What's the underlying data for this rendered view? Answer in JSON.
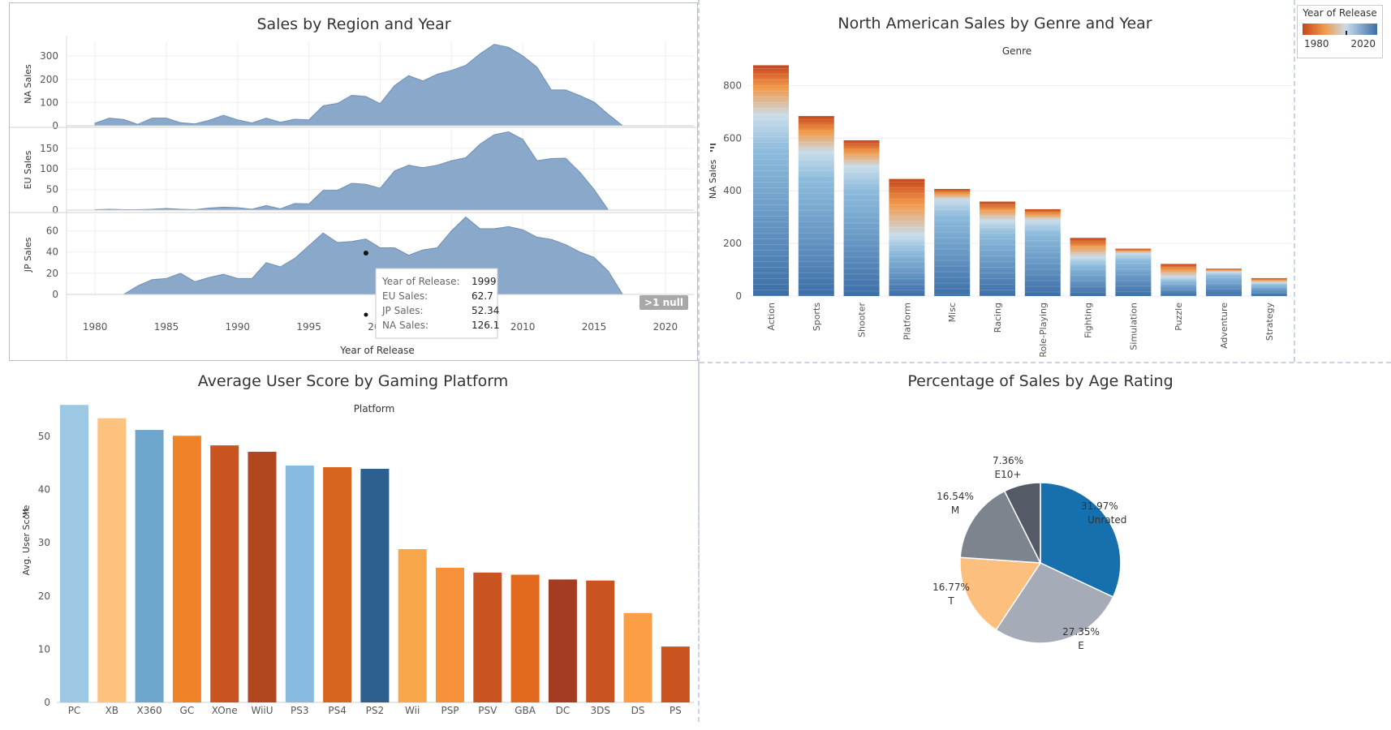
{
  "colors": {
    "area_fill": "#8aa8c9",
    "area_line": "#6f8fb6",
    "tooltip_border": "#c8c8c8",
    "null_badge": "#a8a8a8",
    "gradient_old": "#c6461b",
    "gradient_mid": "#f29a4a",
    "gradient_pale": "#c9dcea",
    "gradient_new": "#3d6fa8"
  },
  "legend": {
    "title": "Year of Release",
    "min_label": "1980",
    "max_label": "2020"
  },
  "region_chart": {
    "title": "Sales by Region and Year",
    "xlabel": "Year of Release",
    "null_badge": ">1 null",
    "tooltip": {
      "rows": [
        {
          "label": "Year of Release:",
          "value": "1999"
        },
        {
          "label": "EU Sales:",
          "value": "62.7"
        },
        {
          "label": "JP Sales:",
          "value": "52.34"
        },
        {
          "label": "NA Sales:",
          "value": "126.1"
        }
      ]
    }
  },
  "genre_chart": {
    "title": "North American Sales by Genre and Year",
    "header": "Genre",
    "ylabel": "NA Sales"
  },
  "platform_chart": {
    "title": "Average User Score by Gaming Platform",
    "header": "Platform",
    "ylabel": "Avg. User Score"
  },
  "age_chart": {
    "title": "Percentage of Sales by Age Rating"
  },
  "chart_data": [
    {
      "type": "area",
      "title": "Sales by Region and Year",
      "xlabel": "Year of Release",
      "xlim": [
        1978,
        2022
      ],
      "xticks": [
        1980,
        1985,
        1990,
        1995,
        2000,
        2005,
        2010,
        2015,
        2020
      ],
      "x": [
        1980,
        1981,
        1982,
        1983,
        1984,
        1985,
        1986,
        1987,
        1988,
        1989,
        1990,
        1991,
        1992,
        1993,
        1994,
        1995,
        1996,
        1997,
        1998,
        1999,
        2000,
        2001,
        2002,
        2003,
        2004,
        2005,
        2006,
        2007,
        2008,
        2009,
        2010,
        2011,
        2012,
        2013,
        2014,
        2015,
        2016,
        2017,
        2018,
        2019,
        2020
      ],
      "series": [
        {
          "name": "NA Sales",
          "ylim": [
            0,
            360
          ],
          "yticks": [
            0,
            100,
            200,
            300
          ],
          "values": [
            11,
            33,
            27,
            6,
            33,
            33,
            13,
            8,
            23,
            45,
            25,
            12,
            33,
            15,
            28,
            25,
            86,
            96,
            131,
            126,
            95,
            173,
            216,
            193,
            222,
            238,
            260,
            310,
            351,
            338,
            301,
            252,
            154,
            154,
            130,
            102,
            49,
            0,
            0,
            0,
            0
          ]
        },
        {
          "name": "EU Sales",
          "ylim": [
            0,
            195
          ],
          "yticks": [
            0,
            50,
            100,
            150
          ],
          "values": [
            1,
            2,
            1,
            1,
            2,
            4,
            2,
            1,
            5,
            7,
            6,
            2,
            11,
            3,
            16,
            15,
            48,
            48,
            65,
            62.7,
            53,
            95,
            109,
            103,
            109,
            120,
            127,
            160,
            183,
            190,
            172,
            120,
            125,
            126,
            92,
            50,
            0,
            0,
            0,
            0,
            0
          ]
        },
        {
          "name": "JP Sales",
          "ylim": [
            0,
            75
          ],
          "yticks": [
            0,
            20,
            40,
            60
          ],
          "values": [
            0,
            0,
            0,
            8,
            14,
            15,
            20,
            12,
            16,
            19,
            15,
            15,
            30,
            26,
            34,
            46,
            58,
            49,
            50,
            52.34,
            44,
            44,
            37,
            42,
            44,
            60,
            73,
            62,
            62,
            64,
            61,
            54,
            52,
            47,
            40,
            35,
            22,
            0,
            0,
            0,
            0
          ]
        }
      ]
    },
    {
      "type": "bar",
      "title": "North American Sales by Genre and Year",
      "xlabel": "Genre",
      "ylabel": "NA Sales",
      "ylim": [
        0,
        900
      ],
      "yticks": [
        0,
        200,
        400,
        600,
        800
      ],
      "categories": [
        "Action",
        "Sports",
        "Shooter",
        "Platform",
        "Misc",
        "Racing",
        "Role-Playing",
        "Fighting",
        "Simulation",
        "Puzzle",
        "Adventure",
        "Strategy"
      ],
      "values": [
        877,
        684,
        592,
        445,
        407,
        359,
        330,
        221,
        180,
        122,
        104,
        68
      ],
      "old_share": [
        0.22,
        0.2,
        0.17,
        0.48,
        0.1,
        0.2,
        0.13,
        0.33,
        0.1,
        0.4,
        0.12,
        0.25
      ],
      "color_scale": "Year of Release"
    },
    {
      "type": "bar",
      "title": "Average User Score by Gaming Platform",
      "xlabel": "Platform",
      "ylabel": "Avg. User Score",
      "ylim": [
        0,
        57
      ],
      "yticks": [
        0,
        10,
        20,
        30,
        40,
        50
      ],
      "categories": [
        "PC",
        "XB",
        "X360",
        "GC",
        "XOne",
        "WiiU",
        "PS3",
        "PS4",
        "PS2",
        "Wii",
        "PSP",
        "PSV",
        "GBA",
        "DC",
        "3DS",
        "DS",
        "PS"
      ],
      "values": [
        55.9,
        53.4,
        51.2,
        50.1,
        48.3,
        47.1,
        44.5,
        44.2,
        43.9,
        28.8,
        25.3,
        24.4,
        24.0,
        23.1,
        22.9,
        16.8,
        10.5
      ],
      "colors": [
        "#9dc8e4",
        "#fdc27d",
        "#6ea6cd",
        "#f08327",
        "#c9541f",
        "#b0471e",
        "#86badf",
        "#d8651f",
        "#2d5f8f",
        "#f8a64a",
        "#f69039",
        "#ca541f",
        "#e26a1e",
        "#a33c20",
        "#c9541f",
        "#fb9e46",
        "#c9541f"
      ]
    },
    {
      "type": "pie",
      "title": "Percentage of Sales by Age Rating",
      "categories": [
        "Unrated",
        "E",
        "T",
        "M",
        "E10+"
      ],
      "values": [
        31.97,
        27.35,
        16.77,
        16.54,
        7.36
      ],
      "labels": [
        "31.97%",
        "27.35%",
        "16.77%",
        "16.54%",
        "7.36%"
      ],
      "colors": [
        "#1670ae",
        "#a5acb8",
        "#fdbf7d",
        "#7e848e",
        "#545b67"
      ]
    }
  ]
}
